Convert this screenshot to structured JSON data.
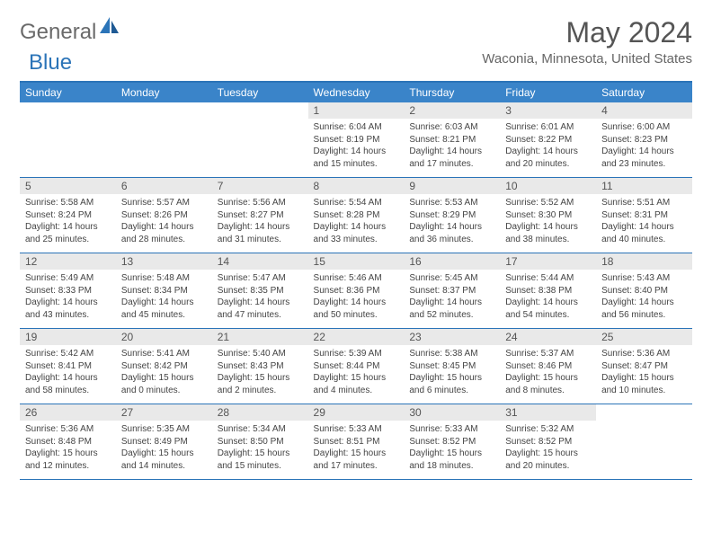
{
  "brand": {
    "general": "General",
    "blue": "Blue"
  },
  "title": "May 2024",
  "location": "Waconia, Minnesota, United States",
  "colors": {
    "header_bg": "#3a84c9",
    "rule": "#2b74b8",
    "daynum_bg": "#e9e9e9",
    "text": "#444444"
  },
  "day_headers": [
    "Sunday",
    "Monday",
    "Tuesday",
    "Wednesday",
    "Thursday",
    "Friday",
    "Saturday"
  ],
  "weeks": [
    [
      {
        "n": "",
        "sr": "",
        "ss": "",
        "dl": ""
      },
      {
        "n": "",
        "sr": "",
        "ss": "",
        "dl": ""
      },
      {
        "n": "",
        "sr": "",
        "ss": "",
        "dl": ""
      },
      {
        "n": "1",
        "sr": "Sunrise: 6:04 AM",
        "ss": "Sunset: 8:19 PM",
        "dl": "Daylight: 14 hours and 15 minutes."
      },
      {
        "n": "2",
        "sr": "Sunrise: 6:03 AM",
        "ss": "Sunset: 8:21 PM",
        "dl": "Daylight: 14 hours and 17 minutes."
      },
      {
        "n": "3",
        "sr": "Sunrise: 6:01 AM",
        "ss": "Sunset: 8:22 PM",
        "dl": "Daylight: 14 hours and 20 minutes."
      },
      {
        "n": "4",
        "sr": "Sunrise: 6:00 AM",
        "ss": "Sunset: 8:23 PM",
        "dl": "Daylight: 14 hours and 23 minutes."
      }
    ],
    [
      {
        "n": "5",
        "sr": "Sunrise: 5:58 AM",
        "ss": "Sunset: 8:24 PM",
        "dl": "Daylight: 14 hours and 25 minutes."
      },
      {
        "n": "6",
        "sr": "Sunrise: 5:57 AM",
        "ss": "Sunset: 8:26 PM",
        "dl": "Daylight: 14 hours and 28 minutes."
      },
      {
        "n": "7",
        "sr": "Sunrise: 5:56 AM",
        "ss": "Sunset: 8:27 PM",
        "dl": "Daylight: 14 hours and 31 minutes."
      },
      {
        "n": "8",
        "sr": "Sunrise: 5:54 AM",
        "ss": "Sunset: 8:28 PM",
        "dl": "Daylight: 14 hours and 33 minutes."
      },
      {
        "n": "9",
        "sr": "Sunrise: 5:53 AM",
        "ss": "Sunset: 8:29 PM",
        "dl": "Daylight: 14 hours and 36 minutes."
      },
      {
        "n": "10",
        "sr": "Sunrise: 5:52 AM",
        "ss": "Sunset: 8:30 PM",
        "dl": "Daylight: 14 hours and 38 minutes."
      },
      {
        "n": "11",
        "sr": "Sunrise: 5:51 AM",
        "ss": "Sunset: 8:31 PM",
        "dl": "Daylight: 14 hours and 40 minutes."
      }
    ],
    [
      {
        "n": "12",
        "sr": "Sunrise: 5:49 AM",
        "ss": "Sunset: 8:33 PM",
        "dl": "Daylight: 14 hours and 43 minutes."
      },
      {
        "n": "13",
        "sr": "Sunrise: 5:48 AM",
        "ss": "Sunset: 8:34 PM",
        "dl": "Daylight: 14 hours and 45 minutes."
      },
      {
        "n": "14",
        "sr": "Sunrise: 5:47 AM",
        "ss": "Sunset: 8:35 PM",
        "dl": "Daylight: 14 hours and 47 minutes."
      },
      {
        "n": "15",
        "sr": "Sunrise: 5:46 AM",
        "ss": "Sunset: 8:36 PM",
        "dl": "Daylight: 14 hours and 50 minutes."
      },
      {
        "n": "16",
        "sr": "Sunrise: 5:45 AM",
        "ss": "Sunset: 8:37 PM",
        "dl": "Daylight: 14 hours and 52 minutes."
      },
      {
        "n": "17",
        "sr": "Sunrise: 5:44 AM",
        "ss": "Sunset: 8:38 PM",
        "dl": "Daylight: 14 hours and 54 minutes."
      },
      {
        "n": "18",
        "sr": "Sunrise: 5:43 AM",
        "ss": "Sunset: 8:40 PM",
        "dl": "Daylight: 14 hours and 56 minutes."
      }
    ],
    [
      {
        "n": "19",
        "sr": "Sunrise: 5:42 AM",
        "ss": "Sunset: 8:41 PM",
        "dl": "Daylight: 14 hours and 58 minutes."
      },
      {
        "n": "20",
        "sr": "Sunrise: 5:41 AM",
        "ss": "Sunset: 8:42 PM",
        "dl": "Daylight: 15 hours and 0 minutes."
      },
      {
        "n": "21",
        "sr": "Sunrise: 5:40 AM",
        "ss": "Sunset: 8:43 PM",
        "dl": "Daylight: 15 hours and 2 minutes."
      },
      {
        "n": "22",
        "sr": "Sunrise: 5:39 AM",
        "ss": "Sunset: 8:44 PM",
        "dl": "Daylight: 15 hours and 4 minutes."
      },
      {
        "n": "23",
        "sr": "Sunrise: 5:38 AM",
        "ss": "Sunset: 8:45 PM",
        "dl": "Daylight: 15 hours and 6 minutes."
      },
      {
        "n": "24",
        "sr": "Sunrise: 5:37 AM",
        "ss": "Sunset: 8:46 PM",
        "dl": "Daylight: 15 hours and 8 minutes."
      },
      {
        "n": "25",
        "sr": "Sunrise: 5:36 AM",
        "ss": "Sunset: 8:47 PM",
        "dl": "Daylight: 15 hours and 10 minutes."
      }
    ],
    [
      {
        "n": "26",
        "sr": "Sunrise: 5:36 AM",
        "ss": "Sunset: 8:48 PM",
        "dl": "Daylight: 15 hours and 12 minutes."
      },
      {
        "n": "27",
        "sr": "Sunrise: 5:35 AM",
        "ss": "Sunset: 8:49 PM",
        "dl": "Daylight: 15 hours and 14 minutes."
      },
      {
        "n": "28",
        "sr": "Sunrise: 5:34 AM",
        "ss": "Sunset: 8:50 PM",
        "dl": "Daylight: 15 hours and 15 minutes."
      },
      {
        "n": "29",
        "sr": "Sunrise: 5:33 AM",
        "ss": "Sunset: 8:51 PM",
        "dl": "Daylight: 15 hours and 17 minutes."
      },
      {
        "n": "30",
        "sr": "Sunrise: 5:33 AM",
        "ss": "Sunset: 8:52 PM",
        "dl": "Daylight: 15 hours and 18 minutes."
      },
      {
        "n": "31",
        "sr": "Sunrise: 5:32 AM",
        "ss": "Sunset: 8:52 PM",
        "dl": "Daylight: 15 hours and 20 minutes."
      },
      {
        "n": "",
        "sr": "",
        "ss": "",
        "dl": ""
      }
    ]
  ]
}
